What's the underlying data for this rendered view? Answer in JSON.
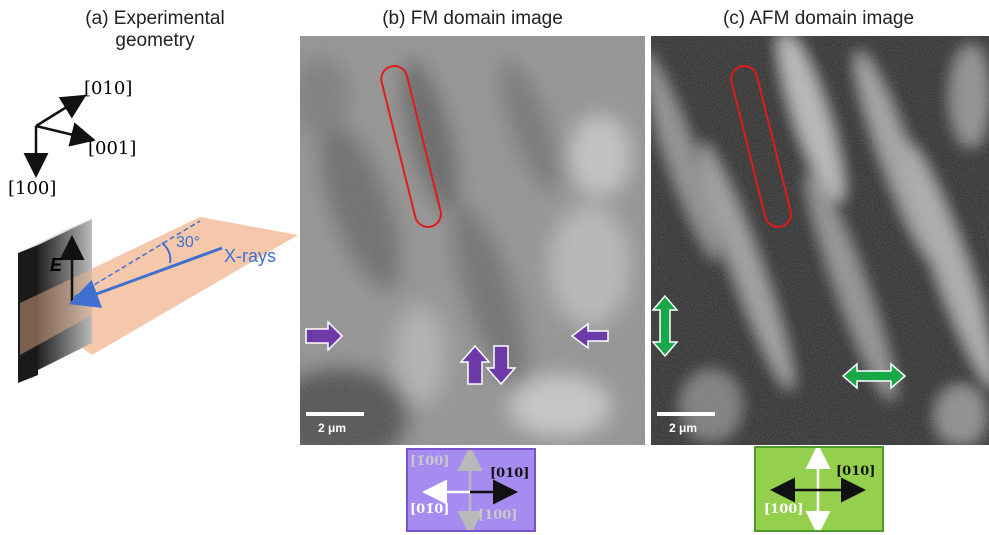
{
  "panels": {
    "a": {
      "title_line1": "(a) Experimental",
      "title_line2": "geometry",
      "axes": {
        "y": "[010]",
        "z": "[001]",
        "x": "[100]"
      },
      "angle_label": "30°",
      "xrays_label": "X-rays",
      "field_label": "E"
    },
    "b": {
      "title": "(b) FM domain image",
      "scale_label": "2 μm",
      "legend": {
        "top_left": "[1̄00]",
        "right": "[010]",
        "left": "[01̄0]",
        "bottom_right": "[100]"
      }
    },
    "c": {
      "title": "(c) AFM domain image",
      "scale_label": "2 μm",
      "legend": {
        "right": "[010]",
        "left": "[100]"
      }
    }
  },
  "colors": {
    "fm_box": "#a68cf0",
    "fm_border": "#7a52c9",
    "afm_box": "#94d04e",
    "afm_border": "#4f9b2a",
    "highlight": "#e01b1b",
    "xray_blue": "#3f6fd1",
    "sample_plane": "#f2b58f",
    "fm_arrow": "#6e3aa8",
    "afm_arrow": "#18a84a"
  }
}
